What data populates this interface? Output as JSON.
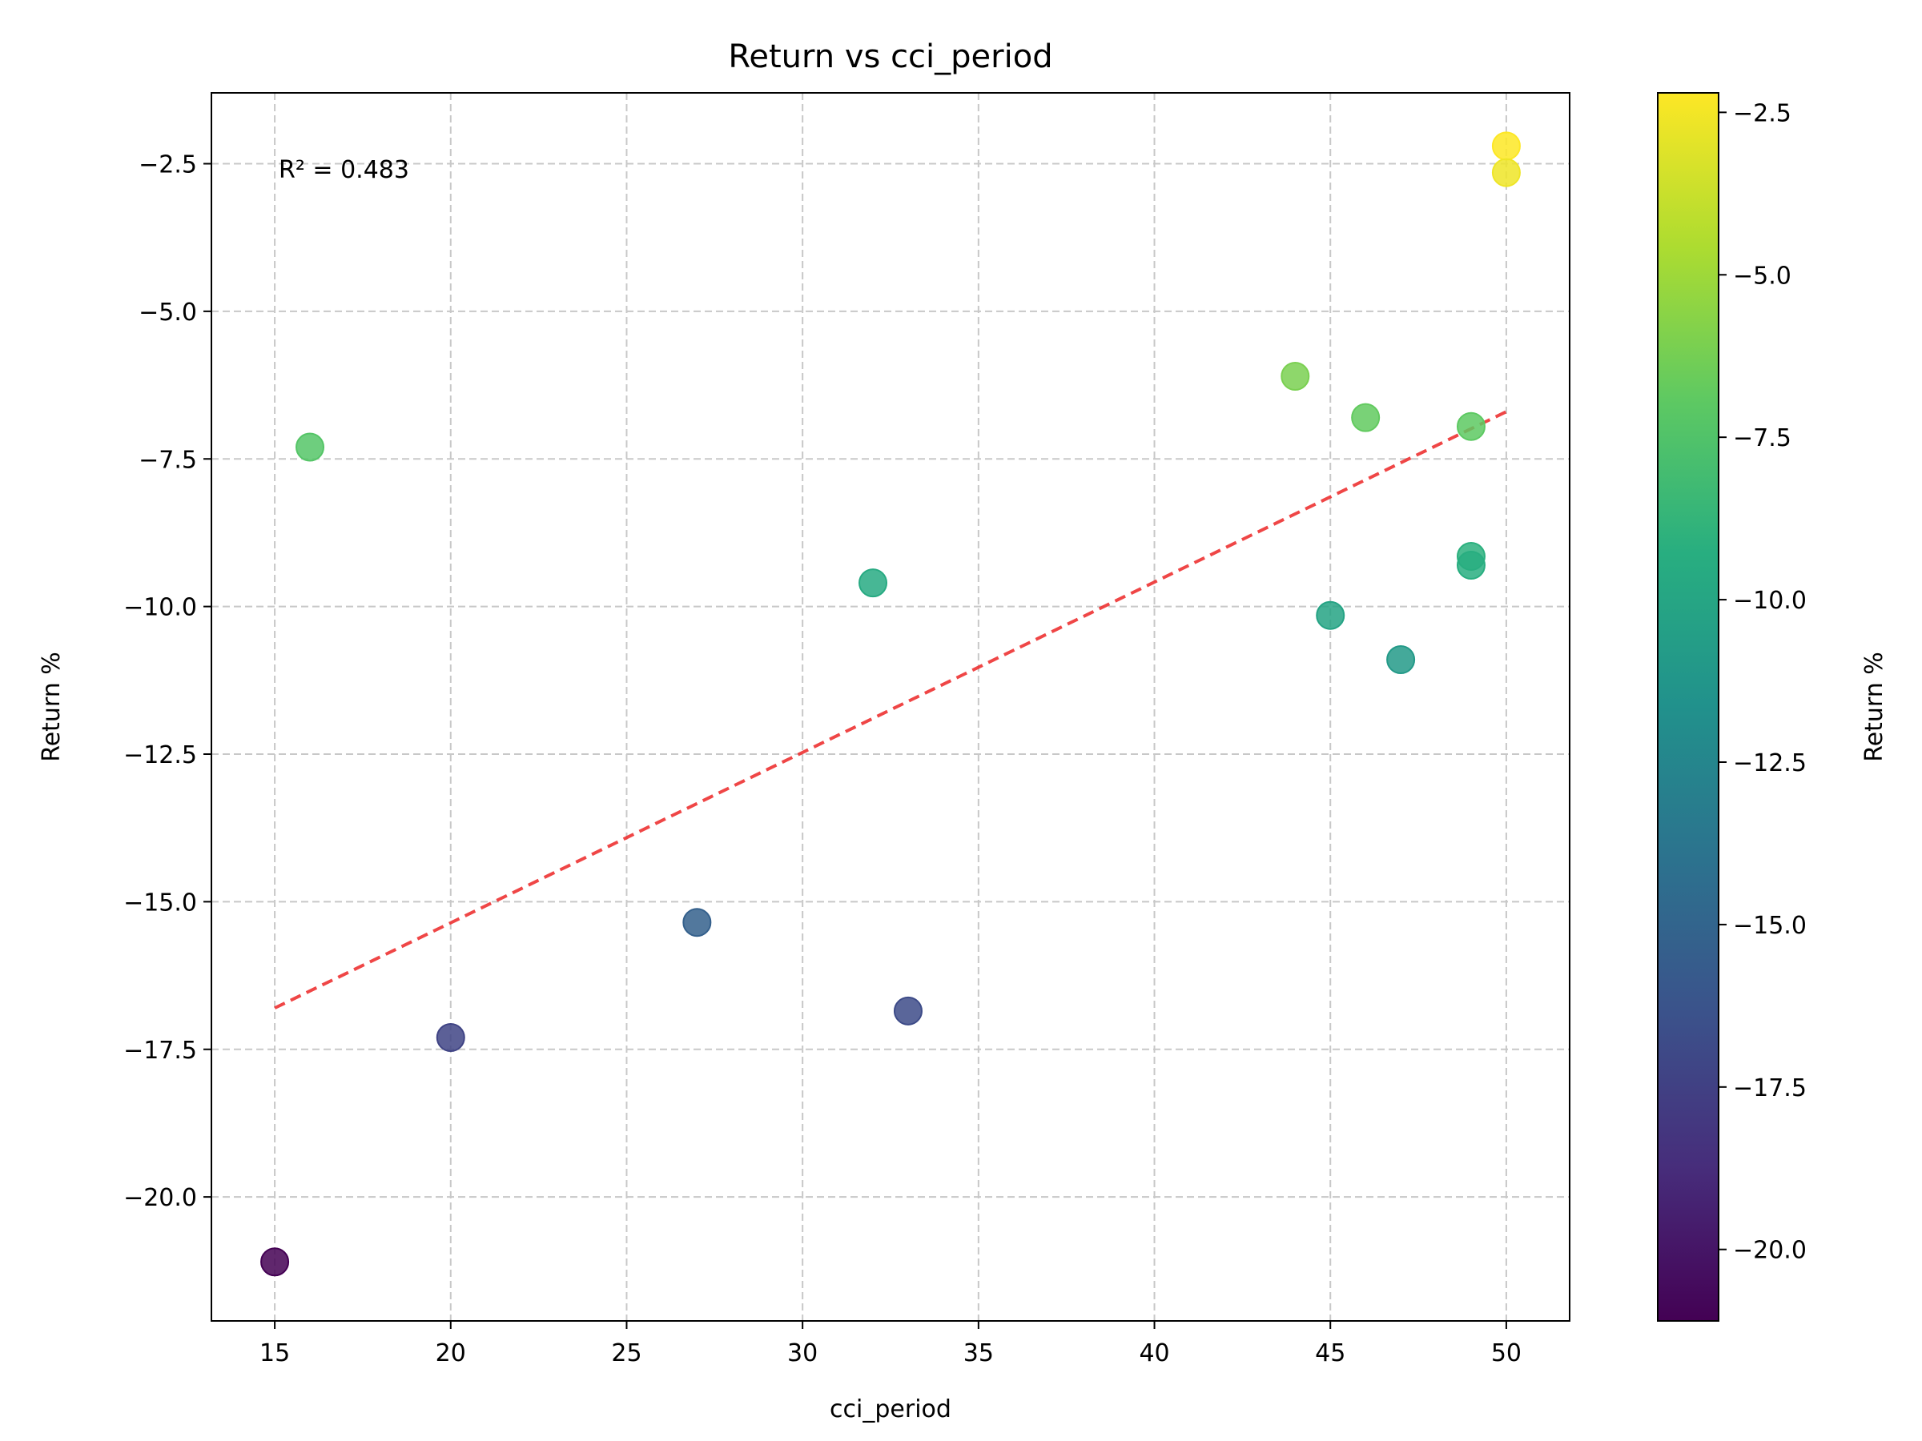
{
  "chart_data": {
    "type": "scatter",
    "title": "Return vs cci_period",
    "xlabel": "cci_period",
    "ylabel": "Return %",
    "xlim": [
      13.2,
      51.8
    ],
    "ylim": [
      -22.1,
      -1.3
    ],
    "xticks": [
      15,
      20,
      25,
      30,
      35,
      40,
      45,
      50
    ],
    "yticks": [
      -20.0,
      -17.5,
      -15.0,
      -12.5,
      -10.0,
      -7.5,
      -5.0,
      -2.5
    ],
    "x_tick_labels": [
      "15",
      "20",
      "25",
      "30",
      "35",
      "40",
      "45",
      "50"
    ],
    "y_tick_labels": [
      "−20.0",
      "−17.5",
      "−15.0",
      "−12.5",
      "−10.0",
      "−7.5",
      "−5.0",
      "−2.5"
    ],
    "grid": true,
    "points": [
      {
        "x": 15,
        "y": -21.1
      },
      {
        "x": 16,
        "y": -7.3
      },
      {
        "x": 20,
        "y": -17.3
      },
      {
        "x": 27,
        "y": -15.35
      },
      {
        "x": 32,
        "y": -9.6
      },
      {
        "x": 33,
        "y": -16.85
      },
      {
        "x": 44,
        "y": -6.1
      },
      {
        "x": 45,
        "y": -10.15
      },
      {
        "x": 46,
        "y": -6.8
      },
      {
        "x": 47,
        "y": -10.9
      },
      {
        "x": 49,
        "y": -6.95
      },
      {
        "x": 49,
        "y": -9.15
      },
      {
        "x": 49,
        "y": -9.3
      },
      {
        "x": 50,
        "y": -2.2
      },
      {
        "x": 50,
        "y": -2.65
      }
    ],
    "trendline": {
      "x": [
        15,
        50
      ],
      "y": [
        -16.8,
        -6.7
      ],
      "color": "#ee3333",
      "style": "dashed"
    },
    "annotation": "R² = 0.483",
    "colorbar": {
      "label": "Return %",
      "colormap": "viridis",
      "range": [
        -21.1,
        -2.2
      ],
      "ticks": [
        -20.0,
        -17.5,
        -15.0,
        -12.5,
        -10.0,
        -7.5,
        -5.0,
        -2.5
      ],
      "tick_labels": [
        "−20.0",
        "−17.5",
        "−15.0",
        "−12.5",
        "−10.0",
        "−7.5",
        "−5.0",
        "−2.5"
      ]
    }
  }
}
